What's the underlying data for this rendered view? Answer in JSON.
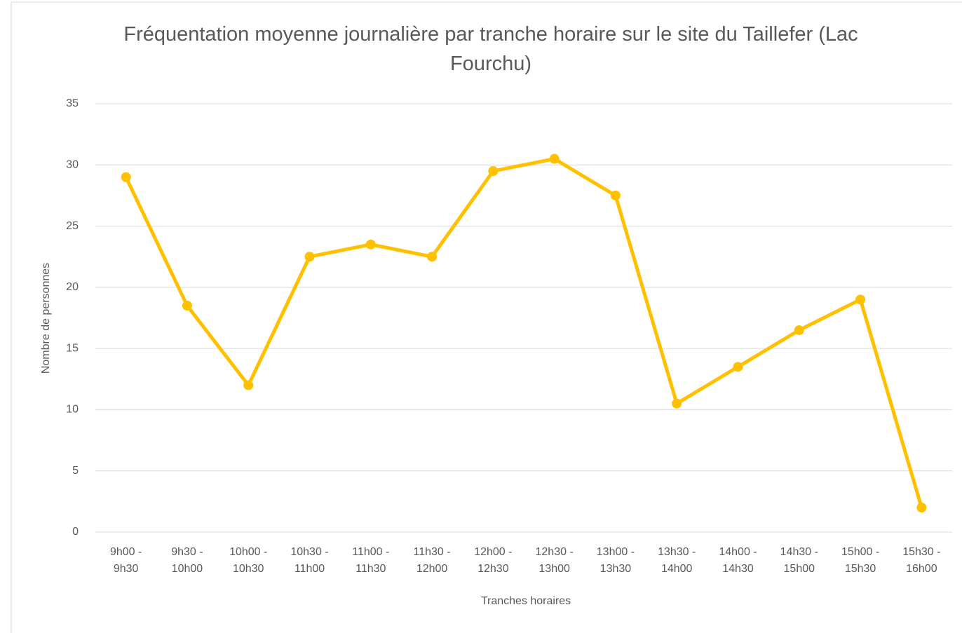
{
  "chart_data": {
    "type": "line",
    "title": "Fréquentation moyenne journalière par tranche horaire sur le site du Taillefer (Lac Fourchu)",
    "x_label": "Tranches horaires",
    "y_label": "Nombre de personnes",
    "categories": [
      "9h00 - 9h30",
      "9h30 - 10h00",
      "10h00 - 10h30",
      "10h30 - 11h00",
      "11h00 - 11h30",
      "11h30 - 12h00",
      "12h00 - 12h30",
      "12h30 - 13h00",
      "13h00 - 13h30",
      "13h30 - 14h00",
      "14h00 - 14h30",
      "14h30 - 15h00",
      "15h00 - 15h30",
      "15h30 - 16h00"
    ],
    "values": [
      29,
      18.5,
      12,
      22.5,
      23.5,
      22.5,
      29.5,
      30.5,
      27.5,
      10.5,
      13.5,
      16.5,
      19,
      2
    ],
    "color": "#ffc000",
    "ylim": [
      0,
      35
    ],
    "yticks": [
      0,
      5,
      10,
      15,
      20,
      25,
      30,
      35
    ],
    "grid": true
  }
}
